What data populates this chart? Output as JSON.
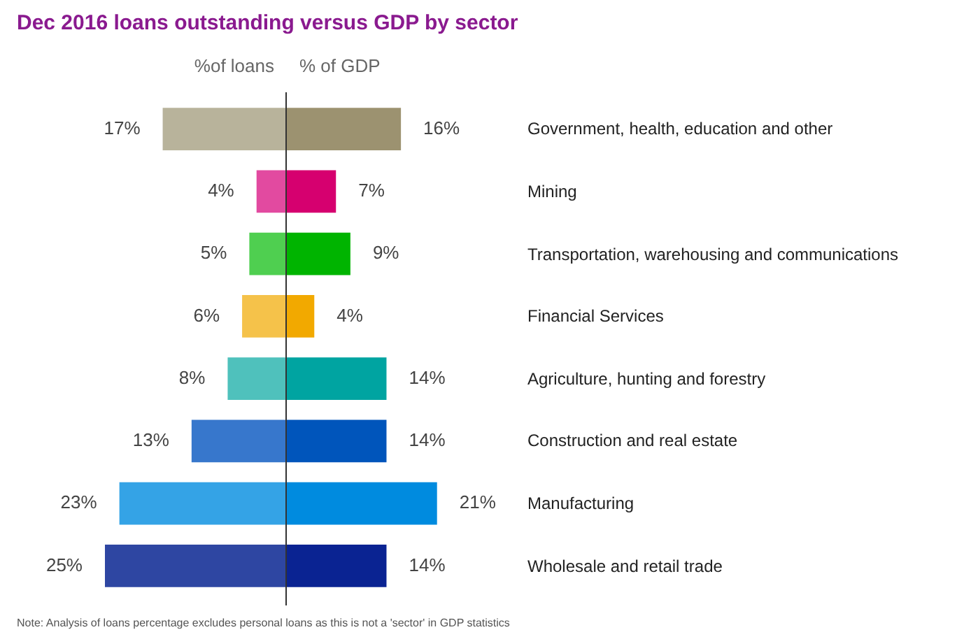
{
  "chart_data": [
    {
      "type": "bar",
      "orientation": "horizontal",
      "title": "Dec 2016 loans outstanding versus GDP by sector",
      "categories": [
        "Government, health, education and other",
        "Mining",
        "Transportation, warehousing and communications",
        "Financial Services",
        "Agriculture, hunting and forestry",
        "Construction and real estate",
        "Manufacturing",
        "Wholesale and retail trade"
      ],
      "series": [
        {
          "name": "%of loans",
          "values": [
            17,
            4,
            5,
            6,
            8,
            13,
            23,
            25
          ],
          "value_labels": [
            "17%",
            "4%",
            "5%",
            "6%",
            "8%",
            "13%",
            "23%",
            "25%"
          ],
          "colors": [
            "#b8b39b",
            "#e24aa0",
            "#4fcf50",
            "#f5c24a",
            "#4fc1bc",
            "#3777cc",
            "#34a3e6",
            "#2e46a2"
          ]
        }
      ],
      "legend": false,
      "tick_labels": "y"
    },
    {
      "type": "bar",
      "orientation": "horizontal",
      "categories": [
        null,
        null,
        null,
        null,
        null,
        null,
        null,
        null
      ],
      "series": [
        {
          "name": "% of GDP",
          "values": [
            16,
            7,
            9,
            4,
            14,
            14,
            21,
            14
          ],
          "value_labels": [
            "16%",
            "7%",
            "9%",
            "4%",
            "14%",
            "14%",
            "21%",
            "14%"
          ],
          "colors": [
            "#9c9270",
            "#d6006f",
            "#00b400",
            "#f2a900",
            "#00a4a1",
            "#0055bb",
            "#008bdf",
            "#0a2392"
          ]
        }
      ],
      "legend": false,
      "tick_labels": false,
      "annotations": [
        "Note: Analysis of  loans percentage excludes personal loans as this is not a 'sector' in GDP statistics"
      ]
    }
  ]
}
